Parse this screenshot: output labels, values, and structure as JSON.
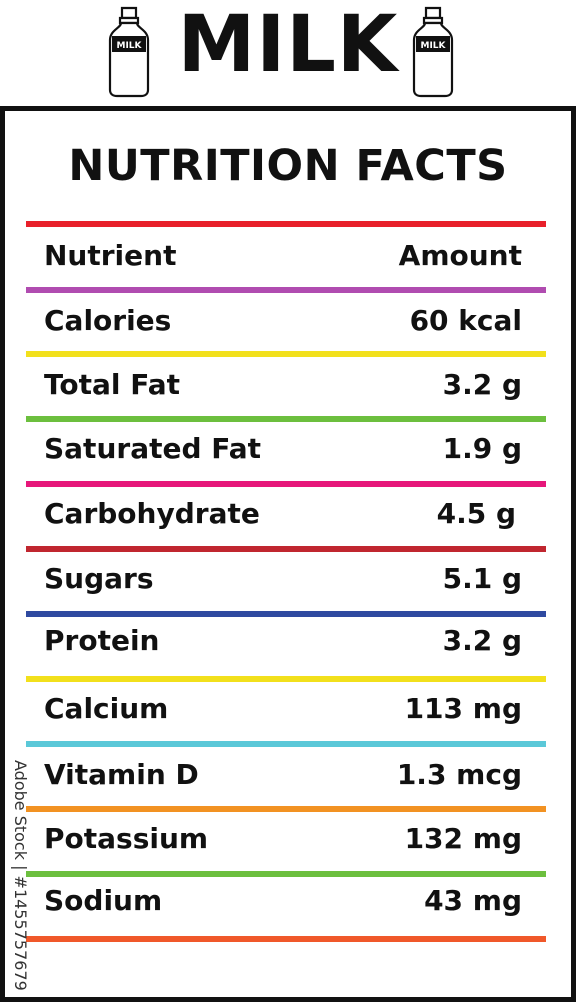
{
  "header": {
    "title": "MILK",
    "bottle_label": "MILK"
  },
  "card": {
    "title": "NUTRITION FACTS",
    "columns": {
      "nutrient": "Nutrient",
      "amount": "Amount"
    },
    "rows": [
      {
        "label": "Calories",
        "value": "60 kcal"
      },
      {
        "label": "Total Fat",
        "value": "3.2 g"
      },
      {
        "label": "Saturated Fat",
        "value": "1.9 g"
      },
      {
        "label": "Carbohydrate",
        "value": "4.5 g"
      },
      {
        "label": "Sugars",
        "value": "5.1 g"
      },
      {
        "label": "Protein",
        "value": "3.2 g"
      },
      {
        "label": "Calcium",
        "value": "113 mg"
      },
      {
        "label": "Vitamin D",
        "value": "1.3 mcg"
      },
      {
        "label": "Potassium",
        "value": "132 mg"
      },
      {
        "label": "Sodium",
        "value": "43 mg"
      }
    ],
    "rule_colors": [
      "#e8202a",
      "#b04cb0",
      "#f2e01c",
      "#6cbf3e",
      "#e6177a",
      "#c0262f",
      "#2f4aa0",
      "#f2e01c",
      "#5bc8d8",
      "#f29222",
      "#6cbf3e",
      "#f0582a"
    ]
  },
  "watermark": {
    "credit": "Adobe Stock | #1455757679"
  }
}
